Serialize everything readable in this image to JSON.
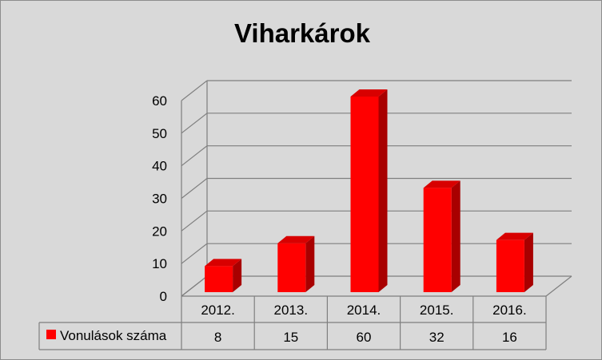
{
  "chart_data": {
    "type": "bar",
    "title": "Viharkárok",
    "categories": [
      "2012.",
      "2013.",
      "2014.",
      "2015.",
      "2016."
    ],
    "series": [
      {
        "name": "Vonulások száma",
        "values": [
          8,
          15,
          60,
          32,
          16
        ],
        "color": "#ff0000"
      }
    ],
    "data_labels": [
      "8",
      "15",
      "60",
      "32",
      "16"
    ],
    "ylim": [
      0,
      60
    ],
    "yticks": [
      0,
      10,
      20,
      30,
      40,
      50,
      60
    ],
    "ytick_labels": [
      "0",
      "10",
      "20",
      "30",
      "40",
      "50",
      "60"
    ],
    "grid": true,
    "three_d": true,
    "legend_position": "data-table"
  },
  "colors": {
    "background": "#d9d9d9",
    "bar_front": "#ff0000",
    "bar_side": "#a80000",
    "bar_top": "#d80000",
    "grid": "#7f7f7f",
    "text": "#000000"
  }
}
